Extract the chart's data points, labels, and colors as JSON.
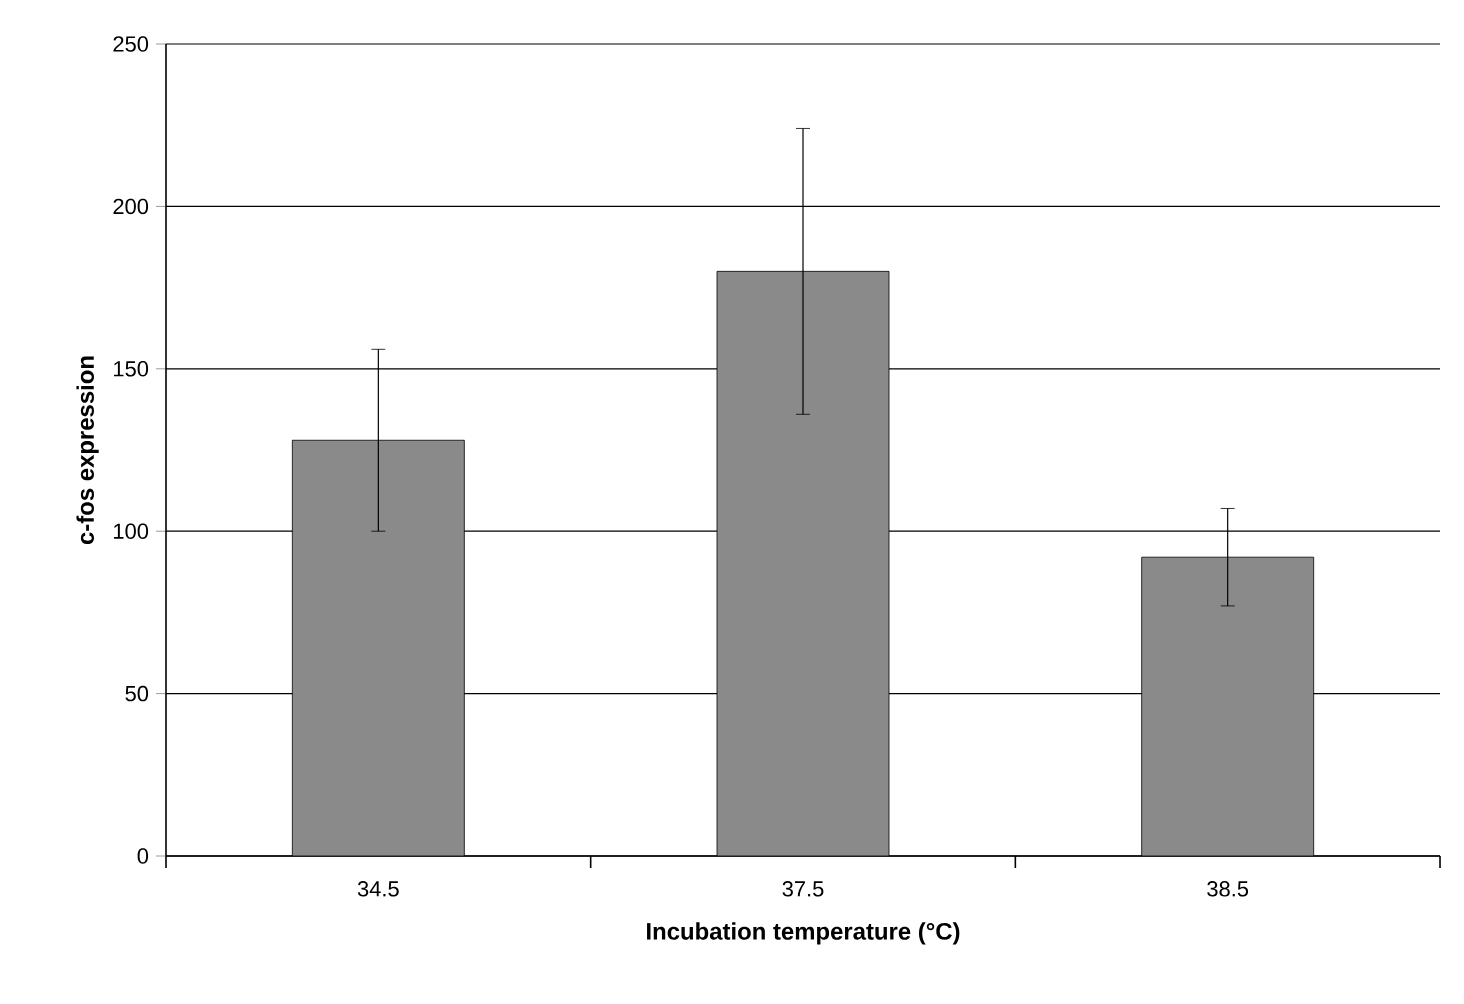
{
  "chart_data": {
    "type": "bar",
    "xlabel": "Incubation temperature (°C)",
    "ylabel": "c-fos expression",
    "categories": [
      "34.5",
      "37.5",
      "38.5"
    ],
    "values": [
      128,
      180,
      92
    ],
    "errors": [
      28,
      44,
      15
    ],
    "color": "#8a8a8a",
    "ylim": [
      0,
      250
    ],
    "yticks": [
      0,
      50,
      100,
      150,
      200,
      250
    ],
    "grid": "y"
  }
}
